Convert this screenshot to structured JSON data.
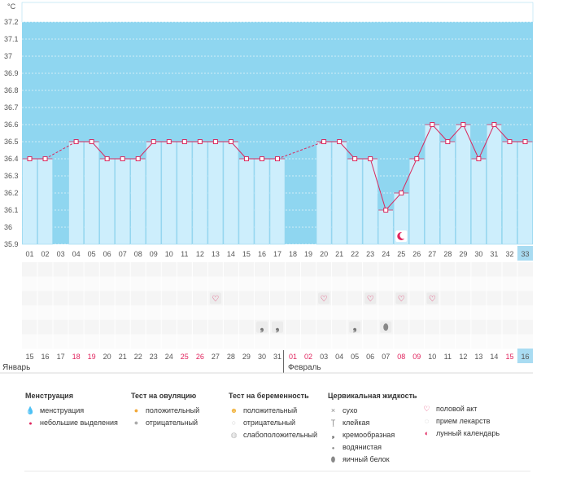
{
  "chart_data": {
    "type": "line",
    "title": "",
    "ylabel": "°C",
    "ylim": [
      35.9,
      37.2
    ],
    "y_ticks": [
      "37.2",
      "37.1",
      "37",
      "36.9",
      "36.8",
      "36.7",
      "36.6",
      "36.5",
      "36.4",
      "36.3",
      "36.2",
      "36.1",
      "36",
      "35.9"
    ],
    "cycle_days": [
      "01",
      "02",
      "03",
      "04",
      "05",
      "06",
      "07",
      "08",
      "09",
      "10",
      "11",
      "12",
      "13",
      "14",
      "15",
      "16",
      "17",
      "18",
      "19",
      "20",
      "21",
      "22",
      "23",
      "24",
      "25",
      "26",
      "27",
      "28",
      "29",
      "30",
      "31",
      "32",
      "33"
    ],
    "dates": [
      "15",
      "16",
      "17",
      "18",
      "19",
      "20",
      "21",
      "22",
      "23",
      "24",
      "25",
      "26",
      "27",
      "28",
      "29",
      "30",
      "31",
      "01",
      "02",
      "03",
      "04",
      "05",
      "06",
      "07",
      "08",
      "09",
      "10",
      "11",
      "12",
      "13",
      "14",
      "15",
      "16"
    ],
    "weekend_dates_idx": [
      3,
      4,
      10,
      11,
      17,
      18,
      24,
      25,
      31
    ],
    "current_day_idx": 32,
    "months": [
      {
        "label": "Январь",
        "start_idx": 0
      },
      {
        "label": "Февраль",
        "start_idx": 17
      }
    ],
    "temperatures": [
      36.4,
      36.4,
      null,
      36.5,
      36.5,
      36.4,
      36.4,
      36.4,
      36.5,
      36.5,
      36.5,
      36.5,
      36.5,
      36.5,
      36.4,
      36.4,
      36.4,
      null,
      null,
      36.5,
      36.5,
      36.4,
      36.4,
      36.1,
      36.2,
      36.4,
      36.6,
      36.5,
      36.6,
      36.4,
      36.6,
      36.5,
      36.5
    ],
    "solid_segments": [
      [
        0,
        1
      ],
      [
        3,
        16
      ],
      [
        19,
        32
      ]
    ],
    "dashed_segments": [
      [
        1,
        3
      ],
      [
        16,
        19
      ]
    ],
    "markers": [
      {
        "row": 2,
        "day_idx": 12,
        "icon": "heart"
      },
      {
        "row": 2,
        "day_idx": 19,
        "icon": "heart"
      },
      {
        "row": 2,
        "day_idx": 22,
        "icon": "heart"
      },
      {
        "row": 2,
        "day_idx": 24,
        "icon": "heart"
      },
      {
        "row": 2,
        "day_idx": 26,
        "icon": "heart"
      },
      {
        "row": 4,
        "day_idx": 15,
        "icon": "creamy"
      },
      {
        "row": 4,
        "day_idx": 16,
        "icon": "creamy"
      },
      {
        "row": 4,
        "day_idx": 21,
        "icon": "creamy"
      },
      {
        "row": 4,
        "day_idx": 23,
        "icon": "egg-white"
      }
    ],
    "moon_day_idx": 24
  },
  "legend": {
    "menstruation": {
      "title": "Менструация",
      "items": [
        {
          "icon": "drop-large",
          "label": "менструация"
        },
        {
          "icon": "drop-small",
          "label": "небольшие выделения"
        }
      ]
    },
    "ovulation": {
      "title": "Тест на овуляцию",
      "items": [
        {
          "icon": "circle-orange",
          "label": "положительный"
        },
        {
          "icon": "circle-gray",
          "label": "отрицательный"
        }
      ]
    },
    "pregnancy": {
      "title": "Тест на беременность",
      "items": [
        {
          "icon": "circle-orange-smile",
          "label": "положительный"
        },
        {
          "icon": "circle-white",
          "label": "отрицательный"
        },
        {
          "icon": "circle-light",
          "label": "слабоположительный"
        }
      ]
    },
    "fluid": {
      "title": "Цервикальная жидкость",
      "items": [
        {
          "icon": "×",
          "label": "сухо"
        },
        {
          "icon": "Ţ",
          "label": "клейкая"
        },
        {
          "icon": "❟",
          "label": "кремообразная"
        },
        {
          "icon": "●",
          "label": "водянистая"
        },
        {
          "icon": "⬮",
          "label": "яичный белок"
        }
      ]
    },
    "other": {
      "items": [
        {
          "icon": "♡",
          "label": "половой акт"
        },
        {
          "icon": "◌",
          "label": "прием лекарств"
        },
        {
          "icon": "◐",
          "label": "лунный календарь"
        }
      ]
    }
  },
  "colors": {
    "bg_blue": "#8fd6f0",
    "bar": "#cdeefc",
    "bar_border": "#9ad7ef",
    "line": "#d9285d",
    "weekend": "#e0245e",
    "current": "#a9dcf2"
  }
}
